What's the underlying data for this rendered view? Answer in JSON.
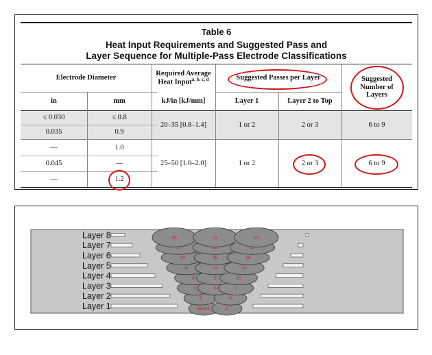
{
  "table": {
    "title": "Table 6",
    "subtitle_line1": "Heat Input Requirements and Suggested Pass and",
    "subtitle_line2": "Layer Sequence for Multiple-Pass Electrode Classifications",
    "headers": {
      "electrode_diameter": "Electrode Diameter",
      "heat_input_line1": "Required Average",
      "heat_input_line2": "Heat Input",
      "heat_input_sup": "a, b, c, d",
      "passes_per_layer": "Suggested Passes per Layer",
      "layers_line1": "Suggested",
      "layers_line2": "Number of",
      "layers_line3": "Layers",
      "in": "in",
      "mm": "mm",
      "kj": "kJ/in [kJ/mm]",
      "layer1": "Layer 1",
      "layer2top": "Layer 2 to Top"
    },
    "rows": [
      {
        "in": "≤ 0.030",
        "mm": "≤ 0.8"
      },
      {
        "in": "0.035",
        "mm": "0.9"
      },
      {
        "in": "—",
        "mm": "1.0"
      },
      {
        "in": "0.045",
        "mm": "—"
      },
      {
        "in": "—",
        "mm": "1.2"
      }
    ],
    "groups": [
      {
        "heat": "20–35 [0.8–1.4]",
        "layer1": "1 or 2",
        "layer2top": "2 or 3",
        "layers": "6 to 9"
      },
      {
        "heat": "25–50 [1.0–2.0]",
        "layer1": "1 or 2",
        "layer2top": "2 or 3",
        "layers": "6 to 9"
      }
    ],
    "highlight_color": "#d01818",
    "shade_color": "#e4e4e4"
  },
  "diagram": {
    "layers": [
      "Layer 1",
      "Layer 2",
      "Layer 3",
      "Layer 4",
      "Layer 5",
      "Layer 6",
      "Layer 7",
      "Layer 8"
    ],
    "pass_labels": [
      "pass1",
      "2",
      "3",
      "4",
      "5",
      "6",
      "7",
      "8",
      "9",
      "10",
      "11",
      "12",
      "13",
      "14",
      "15",
      "16",
      "17",
      "18",
      "19",
      "20",
      "21",
      "22"
    ],
    "plate_color": "#c8c8c8",
    "bead_color": "#8c8c8c",
    "label_color": "#d01818"
  }
}
